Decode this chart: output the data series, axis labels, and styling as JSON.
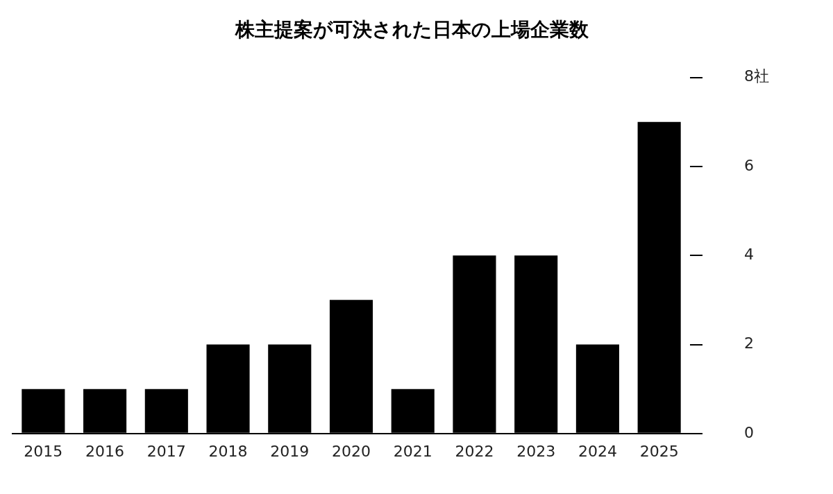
{
  "chart_data": {
    "type": "bar",
    "title": "株主提案が可決された日本の上場企業数",
    "categories": [
      "2015",
      "2016",
      "2017",
      "2018",
      "2019",
      "2020",
      "2021",
      "2022",
      "2023",
      "2024",
      "2025"
    ],
    "values": [
      1,
      1,
      1,
      2,
      2,
      3,
      1,
      4,
      4,
      2,
      7
    ],
    "color": "#000000",
    "ylim": [
      0,
      8
    ],
    "yticks": [
      0,
      2,
      4,
      6,
      {
        "value": 8,
        "label": "8社"
      }
    ]
  }
}
